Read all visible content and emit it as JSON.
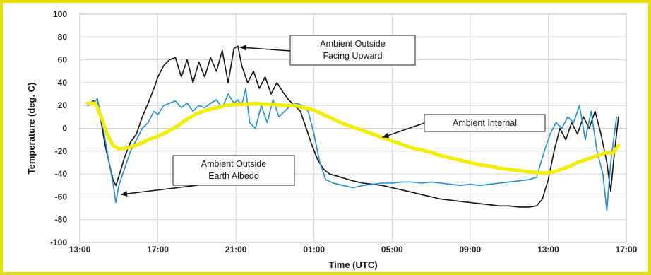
{
  "chart_data": {
    "type": "line",
    "xlabel": "Time (UTC)",
    "ylabel": "Temperature (deg. C)",
    "ylim": [
      -100,
      100
    ],
    "yticks": [
      100,
      80,
      60,
      40,
      20,
      0,
      -20,
      -40,
      -60,
      -80,
      -100
    ],
    "xlim": [
      13,
      41
    ],
    "xticks": [
      {
        "value": 13,
        "label": "13:00"
      },
      {
        "value": 17,
        "label": "17:00"
      },
      {
        "value": 21,
        "label": "21:00"
      },
      {
        "value": 25,
        "label": "01:00"
      },
      {
        "value": 29,
        "label": "05:00"
      },
      {
        "value": 33,
        "label": "09:00"
      },
      {
        "value": 37,
        "label": "13:00"
      },
      {
        "value": 41,
        "label": "17:00"
      }
    ],
    "grid": true,
    "series": [
      {
        "name": "Ambient Outside Facing Upward",
        "color": "#111111",
        "points": [
          [
            13.4,
            21
          ],
          [
            13.7,
            24
          ],
          [
            13.9,
            22
          ],
          [
            14.1,
            5
          ],
          [
            14.3,
            -15
          ],
          [
            14.5,
            -30
          ],
          [
            14.7,
            -45
          ],
          [
            14.85,
            -50
          ],
          [
            15.0,
            -42
          ],
          [
            15.3,
            -25
          ],
          [
            15.6,
            -12
          ],
          [
            15.9,
            -5
          ],
          [
            16.2,
            10
          ],
          [
            16.5,
            22
          ],
          [
            16.8,
            35
          ],
          [
            17.0,
            45
          ],
          [
            17.3,
            55
          ],
          [
            17.6,
            60
          ],
          [
            17.9,
            62
          ],
          [
            18.2,
            45
          ],
          [
            18.5,
            60
          ],
          [
            18.8,
            40
          ],
          [
            19.1,
            58
          ],
          [
            19.4,
            45
          ],
          [
            19.7,
            62
          ],
          [
            20.0,
            50
          ],
          [
            20.3,
            68
          ],
          [
            20.6,
            40
          ],
          [
            20.9,
            70
          ],
          [
            21.1,
            72
          ],
          [
            21.3,
            55
          ],
          [
            21.6,
            40
          ],
          [
            21.9,
            50
          ],
          [
            22.2,
            35
          ],
          [
            22.5,
            45
          ],
          [
            22.8,
            30
          ],
          [
            23.1,
            40
          ],
          [
            23.4,
            32
          ],
          [
            23.7,
            25
          ],
          [
            24.0,
            20
          ],
          [
            24.3,
            15
          ],
          [
            24.6,
            0
          ],
          [
            24.9,
            -15
          ],
          [
            25.2,
            -28
          ],
          [
            25.5,
            -36
          ],
          [
            25.8,
            -40
          ],
          [
            26.2,
            -42
          ],
          [
            26.6,
            -44
          ],
          [
            27.0,
            -46
          ],
          [
            27.5,
            -48
          ],
          [
            28.0,
            -49
          ],
          [
            28.5,
            -50
          ],
          [
            29.0,
            -52
          ],
          [
            29.5,
            -54
          ],
          [
            30.0,
            -56
          ],
          [
            30.5,
            -58
          ],
          [
            31.0,
            -60
          ],
          [
            31.5,
            -62
          ],
          [
            32.0,
            -63
          ],
          [
            32.5,
            -64
          ],
          [
            33.0,
            -65
          ],
          [
            33.5,
            -66
          ],
          [
            34.0,
            -67
          ],
          [
            34.5,
            -68
          ],
          [
            35.0,
            -68
          ],
          [
            35.5,
            -69
          ],
          [
            36.0,
            -69
          ],
          [
            36.4,
            -68
          ],
          [
            36.7,
            -62
          ],
          [
            37.0,
            -45
          ],
          [
            37.3,
            -20
          ],
          [
            37.6,
            0
          ],
          [
            37.9,
            -10
          ],
          [
            38.2,
            5
          ],
          [
            38.5,
            -5
          ],
          [
            38.8,
            10
          ],
          [
            39.1,
            0
          ],
          [
            39.4,
            15
          ],
          [
            39.7,
            -5
          ],
          [
            40.0,
            -30
          ],
          [
            40.2,
            -55
          ],
          [
            40.4,
            -20
          ],
          [
            40.6,
            10
          ]
        ]
      },
      {
        "name": "Ambient Outside Earth Albedo",
        "color": "#1f8dd6",
        "points": [
          [
            13.4,
            20
          ],
          [
            13.7,
            22
          ],
          [
            13.9,
            26
          ],
          [
            14.1,
            10
          ],
          [
            14.3,
            -10
          ],
          [
            14.5,
            -30
          ],
          [
            14.7,
            -48
          ],
          [
            14.85,
            -65
          ],
          [
            15.0,
            -50
          ],
          [
            15.3,
            -35
          ],
          [
            15.6,
            -20
          ],
          [
            15.9,
            -10
          ],
          [
            16.2,
            0
          ],
          [
            16.5,
            5
          ],
          [
            16.8,
            15
          ],
          [
            17.0,
            12
          ],
          [
            17.3,
            20
          ],
          [
            17.6,
            22
          ],
          [
            17.9,
            24
          ],
          [
            18.2,
            18
          ],
          [
            18.5,
            22
          ],
          [
            18.8,
            15
          ],
          [
            19.1,
            20
          ],
          [
            19.4,
            18
          ],
          [
            19.7,
            22
          ],
          [
            20.0,
            25
          ],
          [
            20.3,
            18
          ],
          [
            20.6,
            30
          ],
          [
            20.9,
            22
          ],
          [
            21.1,
            25
          ],
          [
            21.3,
            20
          ],
          [
            21.5,
            35
          ],
          [
            21.7,
            5
          ],
          [
            22.0,
            0
          ],
          [
            22.3,
            20
          ],
          [
            22.6,
            5
          ],
          [
            22.9,
            25
          ],
          [
            23.2,
            10
          ],
          [
            23.5,
            15
          ],
          [
            23.8,
            20
          ],
          [
            24.1,
            22
          ],
          [
            24.4,
            20
          ],
          [
            24.7,
            15
          ],
          [
            25.0,
            -5
          ],
          [
            25.3,
            -30
          ],
          [
            25.6,
            -45
          ],
          [
            26.0,
            -48
          ],
          [
            26.5,
            -50
          ],
          [
            27.0,
            -52
          ],
          [
            27.5,
            -50
          ],
          [
            28.0,
            -49
          ],
          [
            28.5,
            -48
          ],
          [
            29.0,
            -48
          ],
          [
            29.5,
            -47
          ],
          [
            30.0,
            -47
          ],
          [
            30.5,
            -48
          ],
          [
            31.0,
            -47
          ],
          [
            31.5,
            -48
          ],
          [
            32.0,
            -49
          ],
          [
            32.5,
            -50
          ],
          [
            33.0,
            -49
          ],
          [
            33.5,
            -50
          ],
          [
            34.0,
            -49
          ],
          [
            34.5,
            -48
          ],
          [
            35.0,
            -47
          ],
          [
            35.5,
            -46
          ],
          [
            36.0,
            -45
          ],
          [
            36.4,
            -43
          ],
          [
            36.8,
            -20
          ],
          [
            37.1,
            -5
          ],
          [
            37.4,
            5
          ],
          [
            37.7,
            0
          ],
          [
            38.0,
            10
          ],
          [
            38.3,
            5
          ],
          [
            38.6,
            20
          ],
          [
            38.9,
            -10
          ],
          [
            39.2,
            15
          ],
          [
            39.5,
            -20
          ],
          [
            39.8,
            -40
          ],
          [
            40.0,
            -72
          ],
          [
            40.2,
            -30
          ],
          [
            40.5,
            10
          ]
        ]
      },
      {
        "name": "Ambient Internal",
        "color": "#f2ee00",
        "points": [
          [
            13.4,
            22
          ],
          [
            13.8,
            22
          ],
          [
            14.1,
            10
          ],
          [
            14.4,
            -5
          ],
          [
            14.7,
            -15
          ],
          [
            15.0,
            -18
          ],
          [
            15.5,
            -17
          ],
          [
            16.0,
            -14
          ],
          [
            16.5,
            -10
          ],
          [
            17.0,
            -7
          ],
          [
            17.5,
            -3
          ],
          [
            18.0,
            2
          ],
          [
            18.5,
            8
          ],
          [
            19.0,
            13
          ],
          [
            19.5,
            16
          ],
          [
            20.0,
            18
          ],
          [
            20.5,
            20
          ],
          [
            21.0,
            21
          ],
          [
            21.5,
            21
          ],
          [
            22.0,
            22
          ],
          [
            22.5,
            21
          ],
          [
            23.0,
            21
          ],
          [
            23.5,
            20
          ],
          [
            24.0,
            20
          ],
          [
            24.5,
            18
          ],
          [
            25.0,
            16
          ],
          [
            25.5,
            12
          ],
          [
            26.0,
            8
          ],
          [
            26.5,
            4
          ],
          [
            27.0,
            1
          ],
          [
            27.5,
            -2
          ],
          [
            28.0,
            -5
          ],
          [
            28.5,
            -8
          ],
          [
            29.0,
            -11
          ],
          [
            29.5,
            -14
          ],
          [
            30.0,
            -17
          ],
          [
            30.5,
            -19
          ],
          [
            31.0,
            -21
          ],
          [
            31.5,
            -24
          ],
          [
            32.0,
            -26
          ],
          [
            32.5,
            -28
          ],
          [
            33.0,
            -30
          ],
          [
            33.5,
            -32
          ],
          [
            34.0,
            -33
          ],
          [
            34.5,
            -35
          ],
          [
            35.0,
            -36
          ],
          [
            35.5,
            -37
          ],
          [
            36.0,
            -38
          ],
          [
            36.5,
            -39
          ],
          [
            37.0,
            -39
          ],
          [
            37.5,
            -37
          ],
          [
            38.0,
            -34
          ],
          [
            38.5,
            -30
          ],
          [
            39.0,
            -27
          ],
          [
            39.5,
            -24
          ],
          [
            40.0,
            -21
          ],
          [
            40.3,
            -22
          ],
          [
            40.6,
            -15
          ]
        ]
      }
    ],
    "annotations": [
      {
        "lines": [
          "Ambient Outside",
          "Facing Upward"
        ],
        "target": [
          21.2,
          71
        ]
      },
      {
        "lines": [
          "Ambient Internal"
        ],
        "target": [
          28.5,
          -8
        ]
      },
      {
        "lines": [
          "Ambient Outside",
          "Earth Albedo"
        ],
        "target": [
          15.1,
          -58
        ]
      }
    ]
  }
}
